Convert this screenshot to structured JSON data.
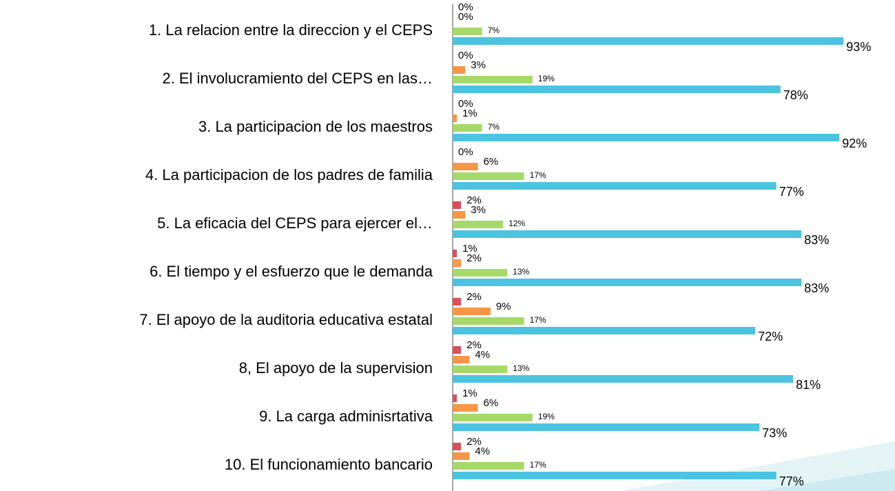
{
  "chart_data": {
    "type": "hbar",
    "categories": [
      "1. La relacion entre la direccion y el CEPS",
      "2. El involucramiento del CEPS en las…",
      "3. La participacion de los maestros",
      "4. La participacion de los padres de familia",
      "5. La eficacia del CEPS para ejercer el…",
      "6. El tiempo y el esfuerzo que le demanda",
      "7. El apoyo de la auditoria educativa estatal",
      "8, El apoyo de la supervision",
      "9. La carga adminisrtativa",
      "10. El funcionamiento bancario"
    ],
    "series": [
      {
        "color": "#d9505a",
        "values": [
          0,
          0,
          0,
          0,
          2,
          1,
          2,
          2,
          1,
          2
        ],
        "value_labels": [
          "0%",
          "0%",
          "0%",
          "0%",
          "2%",
          "1%",
          "2%",
          "2%",
          "1%",
          "2%"
        ]
      },
      {
        "color": "#f79646",
        "values": [
          0,
          3,
          1,
          6,
          3,
          2,
          9,
          4,
          6,
          4
        ],
        "value_labels": [
          "0%",
          "3%",
          "1%",
          "6%",
          "3%",
          "2%",
          "9%",
          "4%",
          "6%",
          "4%"
        ]
      },
      {
        "color": "#a6d96a",
        "values": [
          7,
          19,
          7,
          17,
          12,
          13,
          17,
          13,
          19,
          17
        ],
        "value_labels": [
          "7%",
          "19%",
          "7%",
          "17%",
          "12%",
          "13%",
          "17%",
          "13%",
          "19%",
          "17%"
        ]
      },
      {
        "color": "#4cc3e0",
        "values": [
          93,
          78,
          92,
          77,
          83,
          83,
          72,
          81,
          73,
          77
        ],
        "value_labels": [
          "93%",
          "78%",
          "92%",
          "77%",
          "83%",
          "83%",
          "72%",
          "81%",
          "73%",
          "77%"
        ]
      }
    ],
    "xlim": [
      0,
      100
    ]
  }
}
